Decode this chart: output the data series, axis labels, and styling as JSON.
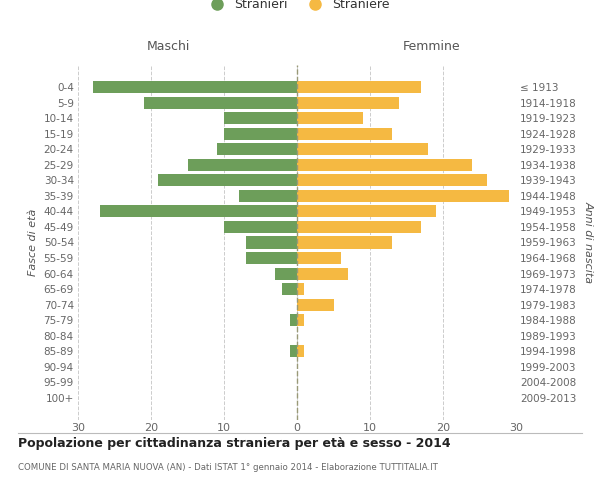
{
  "age_groups": [
    "0-4",
    "5-9",
    "10-14",
    "15-19",
    "20-24",
    "25-29",
    "30-34",
    "35-39",
    "40-44",
    "45-49",
    "50-54",
    "55-59",
    "60-64",
    "65-69",
    "70-74",
    "75-79",
    "80-84",
    "85-89",
    "90-94",
    "95-99",
    "100+"
  ],
  "birth_years": [
    "2009-2013",
    "2004-2008",
    "1999-2003",
    "1994-1998",
    "1989-1993",
    "1984-1988",
    "1979-1983",
    "1974-1978",
    "1969-1973",
    "1964-1968",
    "1959-1963",
    "1954-1958",
    "1949-1953",
    "1944-1948",
    "1939-1943",
    "1934-1938",
    "1929-1933",
    "1924-1928",
    "1919-1923",
    "1914-1918",
    "≤ 1913"
  ],
  "males": [
    28,
    21,
    10,
    10,
    11,
    15,
    19,
    8,
    27,
    10,
    7,
    7,
    3,
    2,
    0,
    1,
    0,
    1,
    0,
    0,
    0
  ],
  "females": [
    17,
    14,
    9,
    13,
    18,
    24,
    26,
    29,
    19,
    17,
    13,
    6,
    7,
    1,
    5,
    1,
    0,
    1,
    0,
    0,
    0
  ],
  "male_color": "#6d9e5a",
  "female_color": "#f5b942",
  "grid_color": "#cccccc",
  "background_color": "#ffffff",
  "title": "Popolazione per cittadinanza straniera per età e sesso - 2014",
  "subtitle": "COMUNE DI SANTA MARIA NUOVA (AN) - Dati ISTAT 1° gennaio 2014 - Elaborazione TUTTITALIA.IT",
  "ylabel_left": "Fasce di età",
  "ylabel_right": "Anni di nascita",
  "header_left": "Maschi",
  "header_right": "Femmine",
  "legend_male": "Stranieri",
  "legend_female": "Straniere",
  "xlim": 30
}
